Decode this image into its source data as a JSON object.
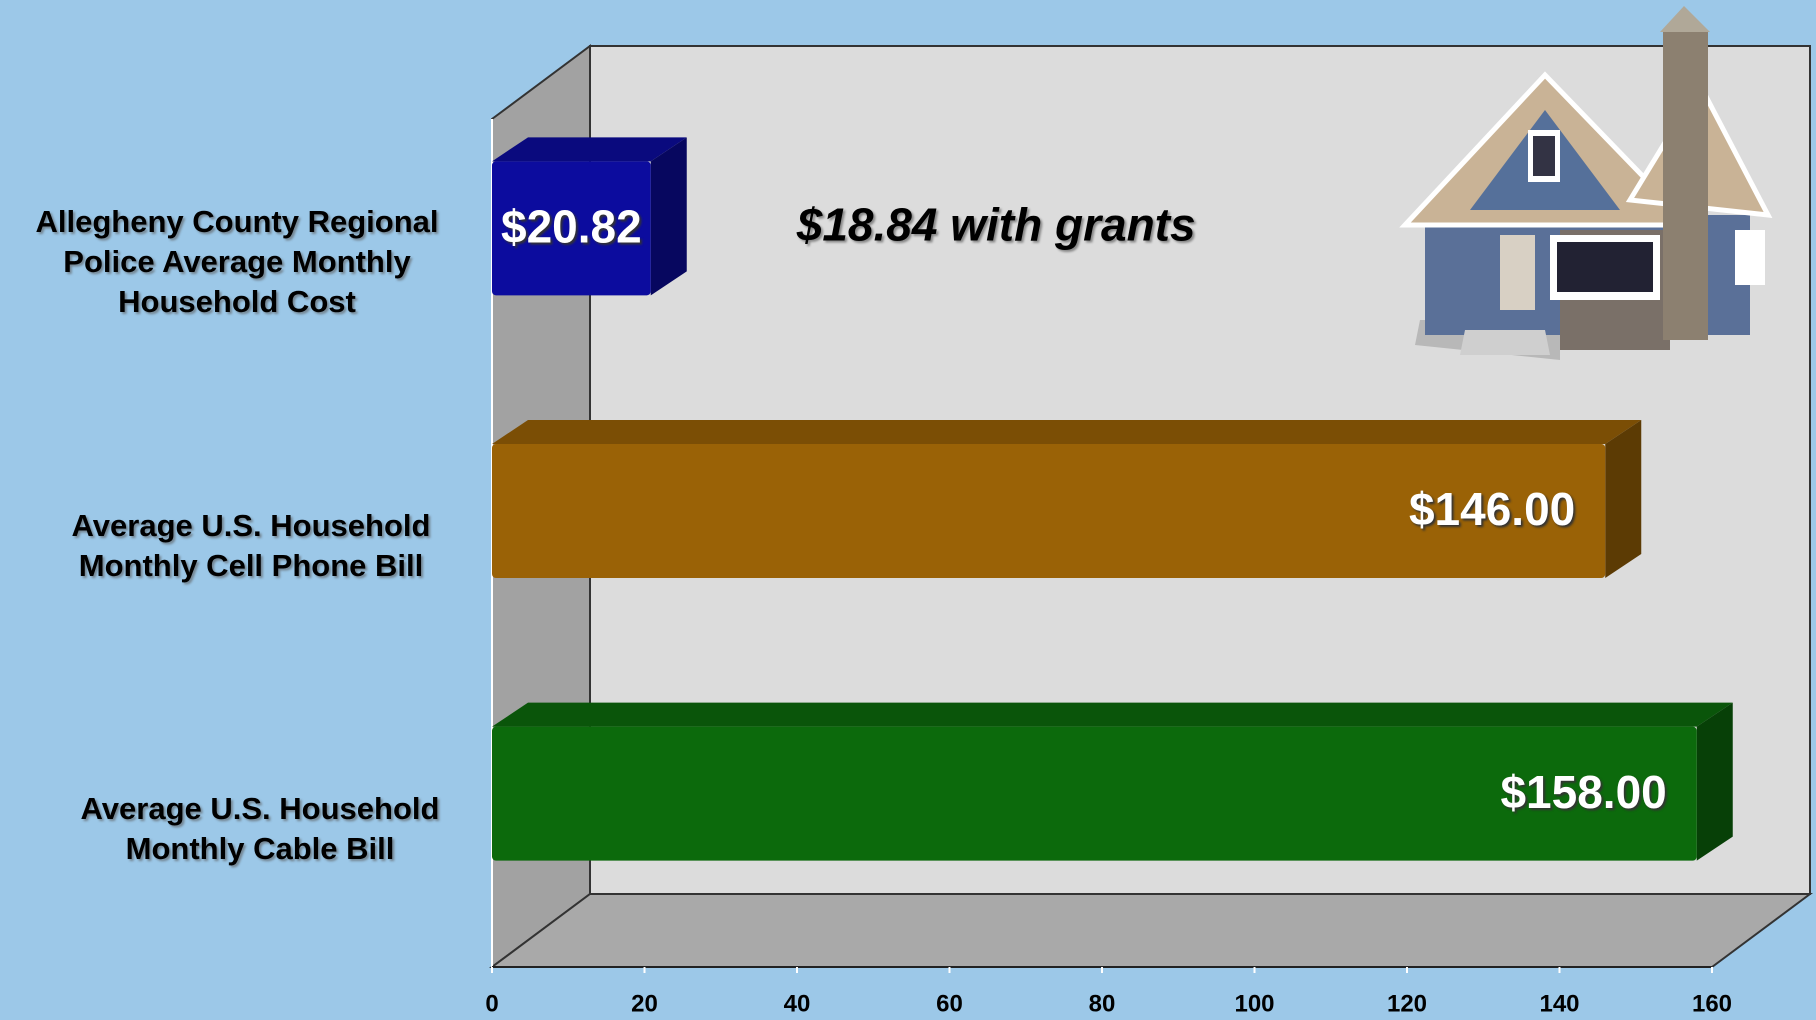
{
  "chart_data": {
    "type": "bar",
    "orientation": "horizontal",
    "categories": [
      "Allegheny County Regional Police Average Monthly Household Cost",
      "Average U.S. Household Monthly Cell Phone Bill",
      "Average U.S. Household Monthly Cable Bill"
    ],
    "values": [
      20.82,
      146,
      158
    ],
    "value_labels": [
      "$20.82",
      "$146.00",
      "$158.00"
    ],
    "colors": [
      "#0c0c9e",
      "#9a6206",
      "#0c6a0c"
    ],
    "annotations": [
      "$18.84 with grants"
    ],
    "xlim": [
      0,
      160
    ],
    "xticks": [
      0,
      20,
      40,
      60,
      80,
      100,
      120,
      140,
      160
    ]
  }
}
